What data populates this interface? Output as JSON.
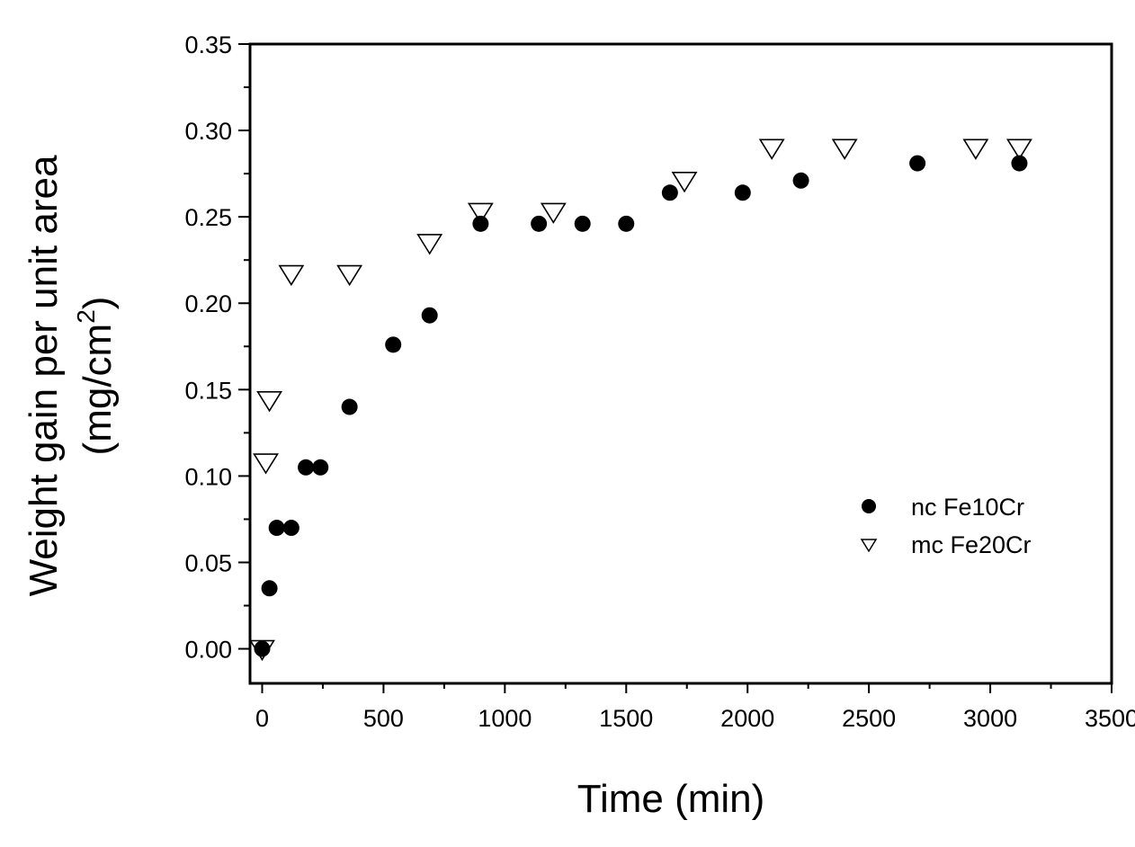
{
  "chart_data": {
    "type": "scatter",
    "title": "",
    "xlabel": "Time (min)",
    "ylabel_line1": "Weight gain per unit area",
    "ylabel_line2": "(mg/cm",
    "ylabel_sup": "2",
    "ylabel_close": ")",
    "xlim": [
      -50,
      3500
    ],
    "ylim": [
      -0.02,
      0.35
    ],
    "xticks": [
      0,
      500,
      1000,
      1500,
      2000,
      2500,
      3000,
      3500
    ],
    "xtick_labels": [
      "0",
      "500",
      "1000",
      "1500",
      "2000",
      "2500",
      "3000",
      "3500"
    ],
    "yticks": [
      0.0,
      0.05,
      0.1,
      0.15,
      0.2,
      0.25,
      0.3,
      0.35
    ],
    "ytick_labels": [
      "0.00",
      "0.05",
      "0.10",
      "0.15",
      "0.20",
      "0.25",
      "0.30",
      "0.35"
    ],
    "grid": false,
    "legend_position": "center-right",
    "series": [
      {
        "name": "nc Fe10Cr",
        "marker": "filled-circle",
        "color": "#000000",
        "x": [
          0,
          30,
          60,
          120,
          180,
          240,
          360,
          540,
          690,
          900,
          1140,
          1320,
          1500,
          1680,
          1980,
          2220,
          2700,
          3120
        ],
        "y": [
          0.0,
          0.035,
          0.07,
          0.07,
          0.105,
          0.105,
          0.14,
          0.176,
          0.193,
          0.246,
          0.246,
          0.246,
          0.246,
          0.264,
          0.264,
          0.271,
          0.281,
          0.281
        ]
      },
      {
        "name": "mc Fe20Cr",
        "marker": "open-down-triangle",
        "color": "#000000",
        "x": [
          0,
          15,
          30,
          120,
          360,
          690,
          900,
          1200,
          1740,
          2100,
          2400,
          2940,
          3120
        ],
        "y": [
          0.0,
          0.108,
          0.144,
          0.217,
          0.217,
          0.235,
          0.253,
          0.253,
          0.271,
          0.29,
          0.29,
          0.29,
          0.29
        ]
      }
    ]
  }
}
